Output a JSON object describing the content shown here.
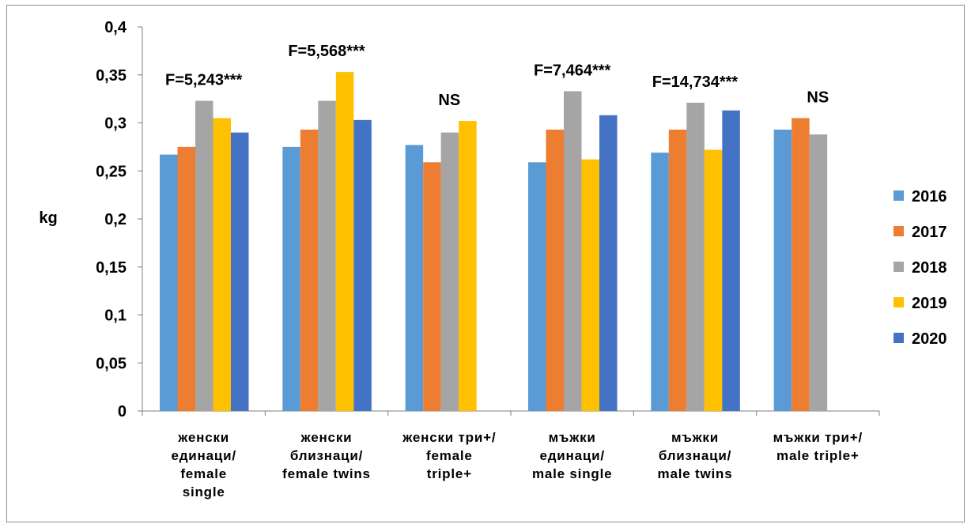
{
  "chart_data": {
    "type": "bar",
    "ylabel": "kg",
    "ylim": [
      0,
      0.4
    ],
    "yticks": [
      0,
      0.05,
      0.1,
      0.15,
      0.2,
      0.25,
      0.3,
      0.35,
      0.4
    ],
    "ytick_labels": [
      "0",
      "0,05",
      "0,1",
      "0,15",
      "0,2",
      "0,25",
      "0,3",
      "0,35",
      "0,4"
    ],
    "categories": [
      [
        "женски",
        "единаци/",
        "female",
        "single"
      ],
      [
        "женски",
        "близнаци/",
        "female twins"
      ],
      [
        "женски три+/",
        "female",
        "triple+"
      ],
      [
        "мъжки",
        "единаци/",
        "male single"
      ],
      [
        "мъжки",
        "близнаци/",
        "male twins"
      ],
      [
        "мъжки три+/",
        "male triple+"
      ]
    ],
    "series": [
      {
        "name": "2016",
        "color": "#5b9bd5",
        "values": [
          0.267,
          0.275,
          0.277,
          0.259,
          0.269,
          0.293
        ]
      },
      {
        "name": "2017",
        "color": "#ed7d31",
        "values": [
          0.275,
          0.293,
          0.259,
          0.293,
          0.293,
          0.305
        ]
      },
      {
        "name": "2018",
        "color": "#a5a5a5",
        "values": [
          0.323,
          0.323,
          0.29,
          0.333,
          0.321,
          0.288
        ]
      },
      {
        "name": "2019",
        "color": "#ffc000",
        "values": [
          0.305,
          0.353,
          0.302,
          0.262,
          0.272,
          null
        ]
      },
      {
        "name": "2020",
        "color": "#4472c4",
        "values": [
          0.29,
          0.303,
          null,
          0.308,
          0.313,
          null
        ]
      }
    ],
    "annotations": [
      "F=5,243***",
      "F=5,568***",
      "NS",
      "F=7,464***",
      "F=14,734***",
      "NS"
    ],
    "grid": false,
    "legend_position": "right"
  }
}
